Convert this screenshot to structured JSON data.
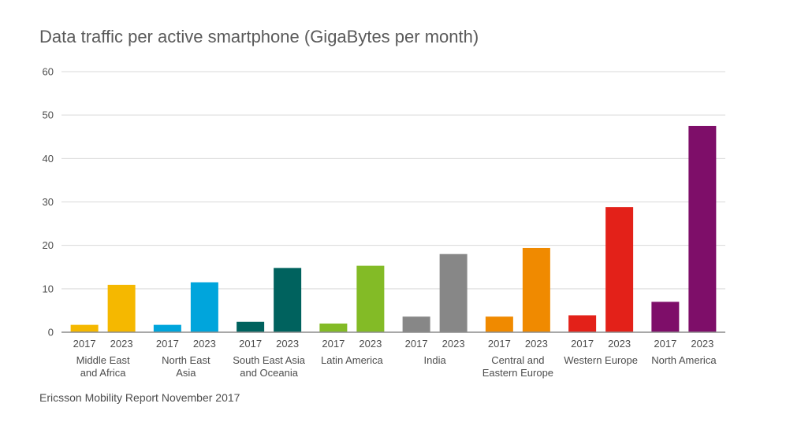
{
  "chart_data": {
    "type": "bar",
    "title": "Data traffic per active smartphone (GigaBytes per month)",
    "source": "Ericsson Mobility Report November 2017",
    "ylim": [
      0,
      60
    ],
    "yticks": [
      0,
      10,
      20,
      30,
      40,
      50,
      60
    ],
    "grid": true,
    "legend": "none",
    "series_years": [
      "2017",
      "2023"
    ],
    "categories": [
      {
        "lines": [
          "Middle East",
          "and Africa"
        ],
        "values": [
          1.7,
          10.9
        ],
        "color": "#f5b800"
      },
      {
        "lines": [
          "North East",
          "Asia"
        ],
        "values": [
          1.7,
          11.5
        ],
        "color": "#00a5dc"
      },
      {
        "lines": [
          "South East Asia",
          "and Oceania"
        ],
        "values": [
          2.4,
          14.8
        ],
        "color": "#00625e"
      },
      {
        "lines": [
          "Latin America"
        ],
        "values": [
          2.0,
          15.3
        ],
        "color": "#83bb26"
      },
      {
        "lines": [
          "India"
        ],
        "values": [
          3.6,
          18.0
        ],
        "color": "#878787"
      },
      {
        "lines": [
          "Central and",
          "Eastern Europe"
        ],
        "values": [
          3.6,
          19.4
        ],
        "color": "#f08a00"
      },
      {
        "lines": [
          "Western Europe"
        ],
        "values": [
          3.9,
          28.8
        ],
        "color": "#e32119"
      },
      {
        "lines": [
          "North America"
        ],
        "values": [
          7.0,
          47.5
        ],
        "color": "#7e0e69"
      }
    ]
  }
}
